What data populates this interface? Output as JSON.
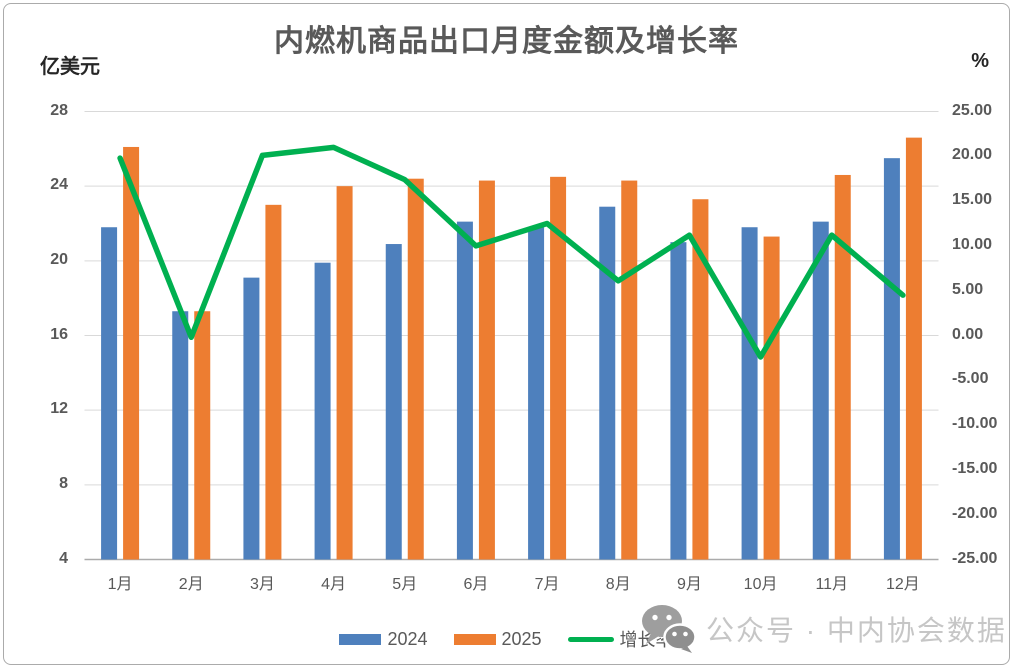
{
  "title": "内燃机商品出口月度金额及增长率",
  "left_axis": {
    "unit": "亿美元",
    "ticks": [
      28,
      24,
      20,
      16,
      12,
      8,
      4
    ]
  },
  "right_axis": {
    "unit": "%",
    "ticks": [
      "25.00",
      "20.00",
      "15.00",
      "10.00",
      "5.00",
      "0.00",
      "-5.00",
      "-10.00",
      "-15.00",
      "-20.00",
      "-25.00"
    ]
  },
  "legend": [
    {
      "label": "2024",
      "color": "#4e80bd",
      "type": "bar"
    },
    {
      "label": "2025",
      "color": "#ed7d31",
      "type": "bar"
    },
    {
      "label": "增长率",
      "color": "#00b050",
      "type": "line"
    }
  ],
  "watermark": "公众号 · 中内协会数据",
  "colors": {
    "bar_2024": "#4e80bd",
    "bar_2025": "#ed7d31",
    "growth_line": "#00b050",
    "gridline": "#d9d9d9",
    "axis_line": "#ababab",
    "axis_text": "#595959"
  },
  "chart_data": {
    "type": "bar",
    "subtype": "grouped-bars-with-line",
    "title": "内燃机商品出口月度金额及增长率",
    "categories": [
      "1月",
      "2月",
      "3月",
      "4月",
      "5月",
      "6月",
      "7月",
      "8月",
      "9月",
      "10月",
      "11月",
      "12月"
    ],
    "series": [
      {
        "name": "2024",
        "type": "bar",
        "axis": "left",
        "color": "#4e80bd",
        "values": [
          21.8,
          17.3,
          19.1,
          19.9,
          20.9,
          22.1,
          21.8,
          22.9,
          21.0,
          21.8,
          22.1,
          25.5
        ]
      },
      {
        "name": "2025",
        "type": "bar",
        "axis": "left",
        "color": "#ed7d31",
        "values": [
          26.1,
          17.3,
          23.0,
          24.0,
          24.4,
          24.3,
          24.5,
          24.3,
          23.3,
          21.3,
          24.6,
          26.6
        ]
      },
      {
        "name": "增长率",
        "type": "line",
        "axis": "right",
        "color": "#00b050",
        "values": [
          19.8,
          -0.2,
          20.1,
          21.0,
          17.4,
          10.0,
          12.5,
          6.1,
          11.2,
          -2.4,
          11.2,
          4.5
        ]
      }
    ],
    "left_ylabel": "亿美元",
    "right_ylabel": "%",
    "left_ylim": [
      4,
      28
    ],
    "right_ylim": [
      -25,
      25
    ],
    "grid": true,
    "legend_position": "bottom"
  }
}
